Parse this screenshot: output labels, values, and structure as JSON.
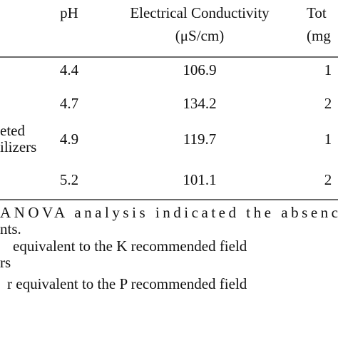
{
  "table": {
    "headers": [
      {
        "lines": [
          "pH"
        ]
      },
      {
        "lines": [
          "Electrical Conductivity",
          "(μS/cm)"
        ]
      },
      {
        "lines": [
          "Tot",
          "(mg"
        ]
      }
    ],
    "rows": [
      {
        "cells": [
          "4.4",
          "106.9",
          "1"
        ]
      },
      {
        "cells": [
          "4.7",
          "134.2",
          "2"
        ]
      },
      {
        "label": [
          "eted",
          "ilizers"
        ],
        "cells": [
          "4.9",
          "119.7",
          "1"
        ]
      },
      {
        "cells": [
          "5.2",
          "101.1",
          "2"
        ]
      }
    ]
  },
  "footnotes": [
    "ANOVA analysis indicated the absenc",
    "nts.",
    "equivalent to the K recommended field",
    "rs",
    "r equivalent to the P recommended field"
  ]
}
